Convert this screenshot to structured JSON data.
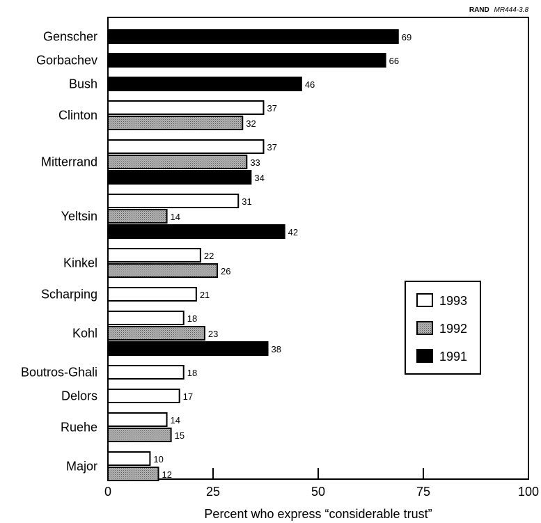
{
  "source": {
    "org": "RAND",
    "id": "MR444-3.8"
  },
  "chart_data": {
    "type": "bar",
    "orientation": "horizontal",
    "xlabel": "Percent who express “considerable trust”",
    "xlim": [
      0,
      100
    ],
    "xticks": [
      0,
      25,
      50,
      75,
      100
    ],
    "grid": false,
    "legend_position": "right",
    "series_order": [
      "1993",
      "1992",
      "1991"
    ],
    "series_colors": {
      "1993": "#ffffff",
      "1992": "#a6a6a6",
      "1991": "#000000"
    },
    "categories": [
      {
        "name": "Genscher",
        "values": {
          "1991": 69
        }
      },
      {
        "name": "Gorbachev",
        "values": {
          "1991": 66
        }
      },
      {
        "name": "Bush",
        "values": {
          "1991": 46
        }
      },
      {
        "name": "Clinton",
        "values": {
          "1993": 37,
          "1992": 32
        }
      },
      {
        "name": "Mitterrand",
        "values": {
          "1993": 37,
          "1992": 33,
          "1991": 34
        }
      },
      {
        "name": "Yeltsin",
        "values": {
          "1993": 31,
          "1992": 14,
          "1991": 42
        }
      },
      {
        "name": "Kinkel",
        "values": {
          "1993": 22,
          "1992": 26
        }
      },
      {
        "name": "Scharping",
        "values": {
          "1993": 21
        }
      },
      {
        "name": "Kohl",
        "values": {
          "1993": 18,
          "1992": 23,
          "1991": 38
        }
      },
      {
        "name": "Boutros-Ghali",
        "values": {
          "1993": 18
        }
      },
      {
        "name": "Delors",
        "values": {
          "1993": 17
        }
      },
      {
        "name": "Ruehe",
        "values": {
          "1993": 14,
          "1992": 15
        }
      },
      {
        "name": "Major",
        "values": {
          "1993": 10,
          "1992": 12
        }
      }
    ]
  }
}
